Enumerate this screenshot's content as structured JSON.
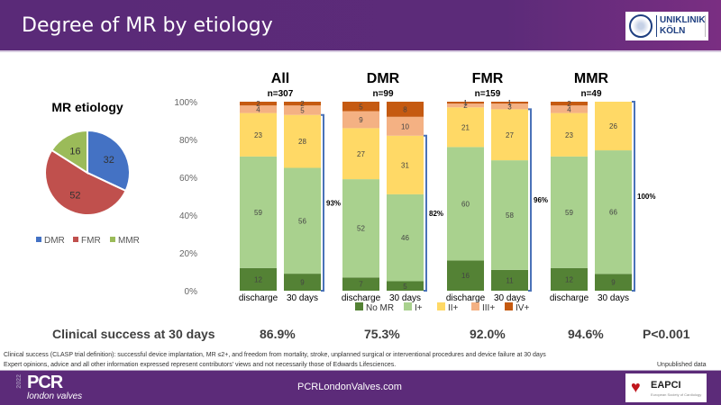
{
  "header": {
    "title": "Degree of MR by etiology",
    "logo_line1": "UNIKLINIK",
    "logo_line2": "KÖLN"
  },
  "colors": {
    "no_mr": "#548235",
    "i_plus": "#a9d18e",
    "ii_plus": "#ffd966",
    "iii_plus": "#f4b183",
    "iv_plus": "#c55a11",
    "dmr": "#4472c4",
    "fmr": "#c0504d",
    "mmr": "#9bbb59",
    "bracket": "#4a72b8",
    "purple": "#5c2b79"
  },
  "chart_data": [
    {
      "type": "pie",
      "title": "MR etiology",
      "categories": [
        "DMR",
        "FMR",
        "MMR"
      ],
      "values": [
        32,
        52,
        16
      ],
      "legend": "bottom"
    },
    {
      "type": "bar",
      "stacked": true,
      "ylim": [
        0,
        100
      ],
      "yticks": [
        "0%",
        "20%",
        "40%",
        "60%",
        "80%",
        "100%"
      ],
      "legend": "bottom",
      "series_names": [
        "No MR",
        "I+",
        "II+",
        "III+",
        "IV+"
      ],
      "groups": [
        {
          "title": "All",
          "n": "n=307",
          "bars": [
            {
              "label": "discharge",
              "values": [
                12,
                59,
                23,
                4,
                2
              ]
            },
            {
              "label": "30 days",
              "values": [
                9,
                56,
                28,
                5,
                2
              ]
            }
          ],
          "bracket_label": "93%"
        },
        {
          "title": "DMR",
          "n": "n=99",
          "bars": [
            {
              "label": "discharge",
              "values": [
                7,
                52,
                27,
                9,
                5
              ]
            },
            {
              "label": "30 days",
              "values": [
                5,
                46,
                31,
                10,
                8
              ]
            }
          ],
          "bracket_label": "82%"
        },
        {
          "title": "FMR",
          "n": "n=159",
          "bars": [
            {
              "label": "discharge",
              "values": [
                16,
                60,
                21,
                2,
                1
              ]
            },
            {
              "label": "30 days",
              "values": [
                11,
                58,
                27,
                3,
                1
              ]
            }
          ],
          "bracket_label": "96%"
        },
        {
          "title": "MMR",
          "n": "n=49",
          "bars": [
            {
              "label": "discharge",
              "values": [
                12,
                59,
                23,
                4,
                2
              ]
            },
            {
              "label": "30 days",
              "values": [
                9,
                66,
                26,
                0,
                0
              ]
            }
          ],
          "bracket_label": "100%"
        }
      ]
    }
  ],
  "clinical_success": {
    "label": "Clinical success at 30 days",
    "values": [
      "86.9%",
      "75.3%",
      "92.0%",
      "94.6%"
    ],
    "p_value": "P<0.001"
  },
  "notes": {
    "definition": "Clinical success (CLASP trial definition): successful device implantation, MR ≤2+, and freedom from mortality, stroke, unplanned surgical or interventional procedures and device failure at 30 days",
    "disclaimer": "Expert opinions, advice and all other information expressed represent contributors' views and not necessarily those of Edwards Lifesciences.",
    "unpublished": "Unpublished data"
  },
  "footer": {
    "year": "2022",
    "pcr": "PCR",
    "pcr_sub": "london valves",
    "site": "PCRLondonValves.com",
    "eapci": "EAPCI",
    "eapci_sub": "European Society of Cardiology"
  }
}
